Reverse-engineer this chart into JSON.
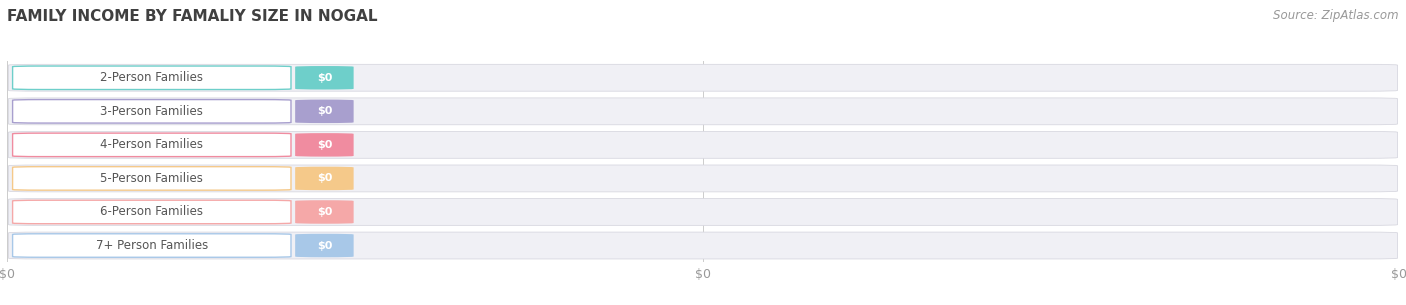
{
  "title": "FAMILY INCOME BY FAMALIY SIZE IN NOGAL",
  "source": "Source: ZipAtlas.com",
  "categories": [
    "2-Person Families",
    "3-Person Families",
    "4-Person Families",
    "5-Person Families",
    "6-Person Families",
    "7+ Person Families"
  ],
  "values": [
    0,
    0,
    0,
    0,
    0,
    0
  ],
  "bar_colors": [
    "#6ecfca",
    "#a89fce",
    "#f08ca0",
    "#f5c98a",
    "#f5a8a8",
    "#a8c8e8"
  ],
  "bg_bar_color": "#f0f0f5",
  "background_color": "#ffffff",
  "title_color": "#404040",
  "source_color": "#999999",
  "tick_label_color": "#999999",
  "grid_color": "#cccccc",
  "xlim": [
    0,
    1
  ],
  "title_fontsize": 11,
  "source_fontsize": 8.5,
  "tick_fontsize": 9,
  "label_fontsize": 8.5,
  "value_fontsize": 8
}
